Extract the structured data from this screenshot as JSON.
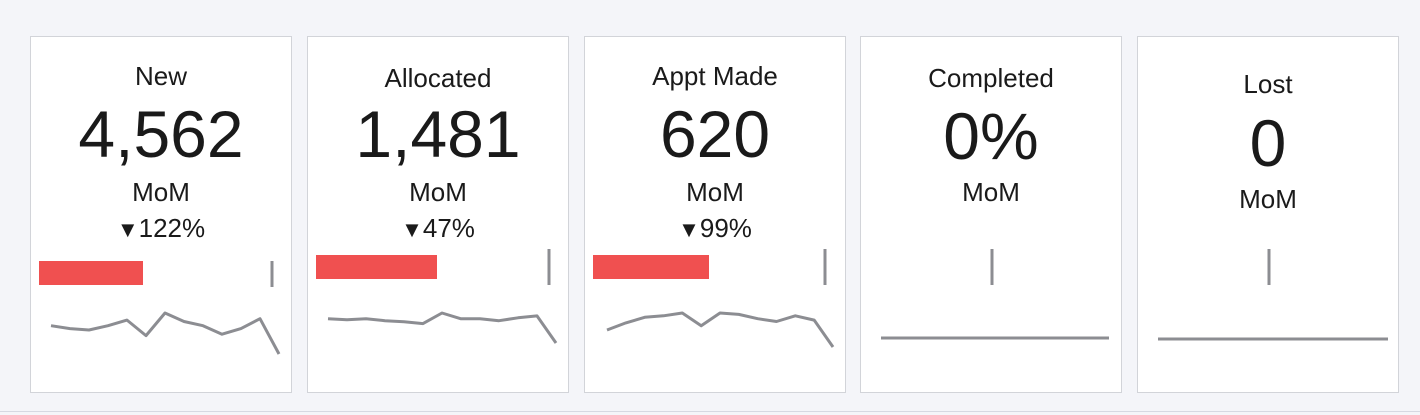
{
  "colors": {
    "bar": "#f05050",
    "line": "#8c8d92",
    "card_border": "#d2d4d9"
  },
  "cards": [
    {
      "title": "New",
      "value": "4,562",
      "mom_label": "MoM",
      "change_arrow": "▼",
      "change_value": "122%",
      "bar_fraction": 0.45,
      "trend": [
        20,
        18,
        17,
        20,
        24,
        13,
        29,
        23,
        20,
        14,
        18,
        25,
        0
      ]
    },
    {
      "title": "Allocated",
      "value": "1,481",
      "mom_label": "MoM",
      "change_arrow": "▼",
      "change_value": "47%",
      "bar_fraction": 0.52,
      "trend": [
        25,
        24,
        25,
        23,
        22,
        20,
        31,
        25,
        25,
        23,
        26,
        28,
        0
      ]
    },
    {
      "title": "Appt Made",
      "value": "620",
      "mom_label": "MoM",
      "change_arrow": "▼",
      "change_value": "99%",
      "bar_fraction": 0.5,
      "trend": [
        12,
        17,
        21,
        22,
        24,
        15,
        24,
        23,
        20,
        18,
        22,
        19,
        0
      ]
    },
    {
      "title": "Completed",
      "value": "0%",
      "mom_label": "MoM",
      "change_arrow": "",
      "change_value": "",
      "bar_fraction": 0,
      "trend": [
        0,
        0
      ]
    },
    {
      "title": "Lost",
      "value": "0",
      "mom_label": "MoM",
      "change_arrow": "",
      "change_value": "",
      "bar_fraction": 0,
      "trend": [
        0,
        0
      ]
    }
  ]
}
